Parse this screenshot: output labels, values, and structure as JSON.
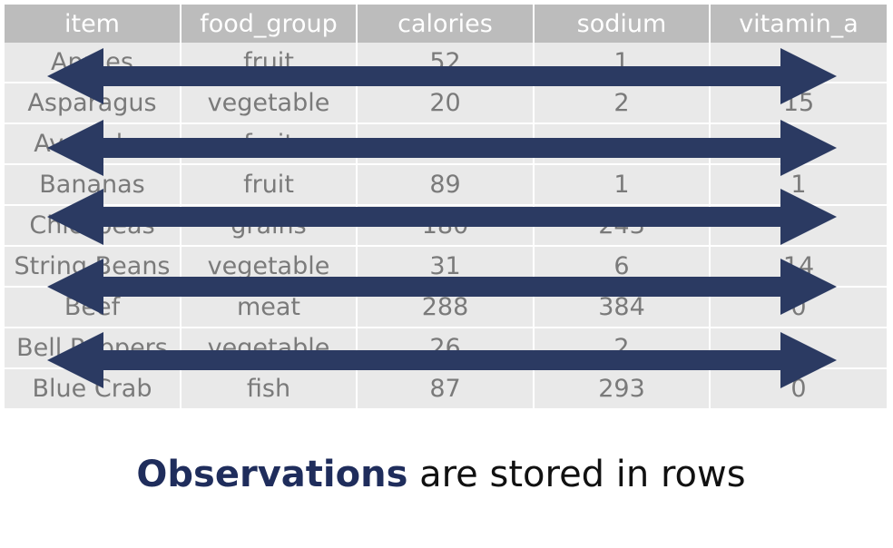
{
  "table": {
    "columns": [
      "item",
      "food_group",
      "calories",
      "sodium",
      "vitamin_a"
    ],
    "rows": [
      [
        "Apples",
        "fruit",
        "52",
        "1",
        ""
      ],
      [
        "Asparagus",
        "vegetable",
        "20",
        "2",
        "15"
      ],
      [
        "Avocados",
        "fruit",
        "",
        "",
        ""
      ],
      [
        "Bananas",
        "fruit",
        "89",
        "1",
        "1"
      ],
      [
        "Chickpeas",
        "grains",
        "180",
        "243",
        ""
      ],
      [
        "String Beans",
        "vegetable",
        "31",
        "6",
        "14"
      ],
      [
        "Beef",
        "meat",
        "288",
        "384",
        "0"
      ],
      [
        "Bell Peppers",
        "vegetable",
        "26",
        "2",
        ""
      ],
      [
        "Blue Crab",
        "fish",
        "87",
        "293",
        "0"
      ]
    ]
  },
  "arrows": {
    "color": "#2b3a62",
    "direction": "horizontal",
    "count": 5
  },
  "caption": {
    "emphasis": "Observations",
    "rest": " are stored in rows",
    "emphasis_color": "#1f2d5c"
  }
}
